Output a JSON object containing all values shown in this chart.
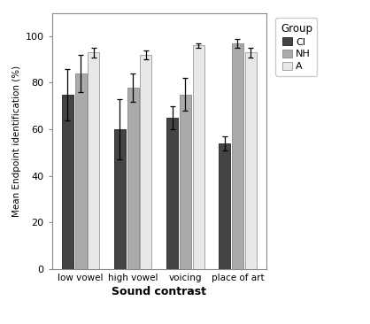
{
  "categories": [
    "low vowel",
    "high vowel",
    "voicing",
    "place of art"
  ],
  "groups": [
    "CI",
    "NH",
    "A"
  ],
  "values": [
    [
      75,
      60,
      65,
      54
    ],
    [
      84,
      78,
      75,
      97
    ],
    [
      93,
      92,
      96,
      93
    ]
  ],
  "errors": [
    [
      11,
      13,
      5,
      3
    ],
    [
      8,
      6,
      7,
      2
    ],
    [
      2,
      2,
      1,
      2
    ]
  ],
  "bar_colors": [
    "#444444",
    "#aaaaaa",
    "#e8e8e8"
  ],
  "bar_edgecolors": [
    "#222222",
    "#888888",
    "#999999"
  ],
  "legend_title": "Group",
  "xlabel": "Sound contrast",
  "ylabel": "Mean Endpoint identification (%)",
  "ylim": [
    0,
    110
  ],
  "yticks": [
    0,
    20,
    40,
    60,
    80,
    100
  ],
  "background_color": "#ffffff",
  "bar_width": 0.22,
  "group_width": 0.72
}
